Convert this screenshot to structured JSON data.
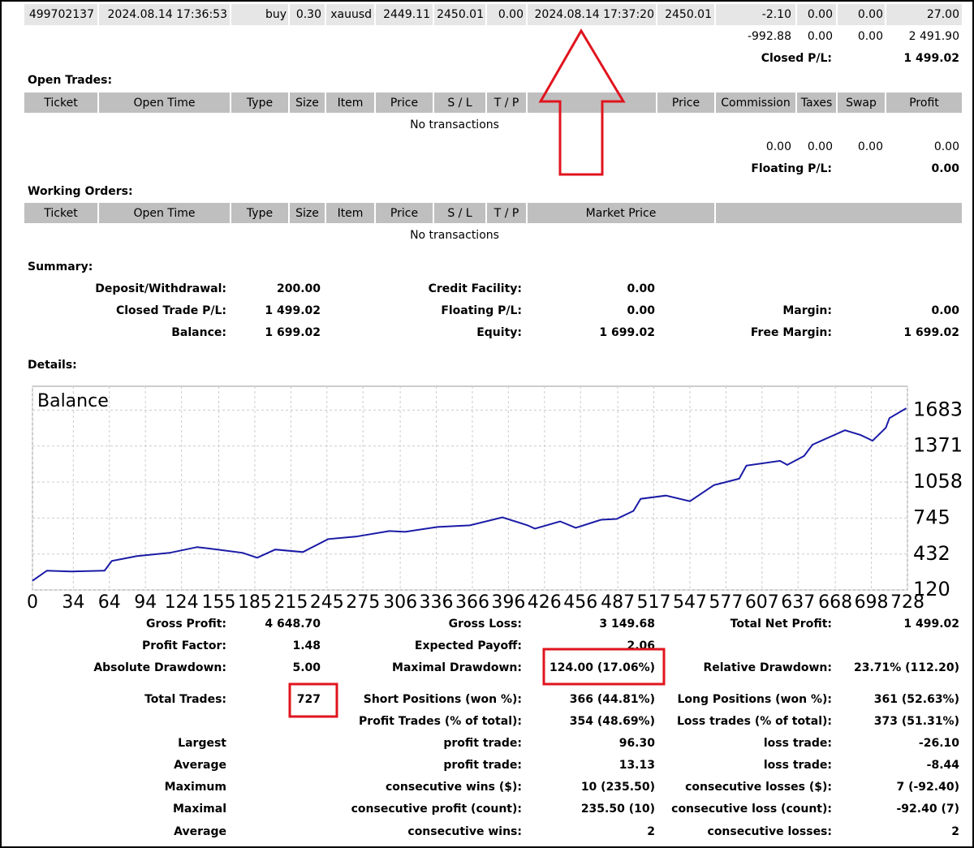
{
  "closed_trades": {
    "row": [
      "499702137",
      "2024.08.14 17:36:53",
      "buy",
      "0.30",
      "xauusd",
      "2449.11",
      "2450.01",
      "0.00",
      "2024.08.14 17:37:20",
      "2450.01",
      "-2.10",
      "0.00",
      "0.00",
      "27.00"
    ],
    "totals": [
      "-992.88",
      "0.00",
      "0.00",
      "2 491.90"
    ],
    "pl_label": "Closed P/L:",
    "pl_value": "1 499.02"
  },
  "open_trades": {
    "title": "Open Trades:",
    "headers": [
      "Ticket",
      "Open Time",
      "Type",
      "Size",
      "Item",
      "Price",
      "S / L",
      "T / P",
      "Price",
      "Commission",
      "Taxes",
      "Swap",
      "Profit"
    ],
    "empty": "No transactions",
    "totals": [
      "0.00",
      "0.00",
      "0.00",
      "0.00"
    ],
    "pl_label": "Floating P/L:",
    "pl_value": "0.00"
  },
  "working_orders": {
    "title": "Working Orders:",
    "headers": [
      "Ticket",
      "Open Time",
      "Type",
      "Size",
      "Item",
      "Price",
      "S / L",
      "T / P",
      "Market Price"
    ],
    "empty": "No transactions"
  },
  "summary": {
    "title": "Summary:",
    "rows": [
      [
        "Deposit/Withdrawal:",
        "200.00",
        "Credit Facility:",
        "0.00",
        null,
        null
      ],
      [
        "Closed Trade P/L:",
        "1 499.02",
        "Floating P/L:",
        "0.00",
        "Margin:",
        "0.00"
      ],
      [
        "Balance:",
        "1 699.02",
        "Equity:",
        "1 699.02",
        "Free Margin:",
        "1 699.02"
      ]
    ]
  },
  "details": {
    "title": "Details:",
    "rows": [
      [
        "Gross Profit:",
        "4 648.70",
        "Gross Loss:",
        "3 149.68",
        "Total Net Profit:",
        "1 499.02"
      ],
      [
        "Profit Factor:",
        "1.48",
        "Expected Payoff:",
        "2.06",
        null,
        null
      ],
      [
        "Absolute Drawdown:",
        "5.00",
        "Maximal Drawdown:",
        "124.00 (17.06%)",
        "Relative Drawdown:",
        "23.71% (112.20)"
      ],
      [
        "Total Trades:",
        "727",
        "Short Positions (won %):",
        "366 (44.81%)",
        "Long Positions (won %):",
        "361 (52.63%)"
      ],
      [
        null,
        null,
        "Profit Trades (% of total):",
        "354 (48.69%)",
        "Loss trades (% of total):",
        "373 (51.31%)"
      ],
      [
        "Largest",
        null,
        "profit trade:",
        "96.30",
        "loss trade:",
        "-26.10"
      ],
      [
        "Average",
        null,
        "profit trade:",
        "13.13",
        "loss trade:",
        "-8.44"
      ],
      [
        "Maximum",
        null,
        "consecutive wins ($):",
        "10 (235.50)",
        "consecutive losses ($):",
        "7 (-92.40)"
      ],
      [
        "Maximal",
        null,
        "consecutive profit (count):",
        "235.50 (10)",
        "consecutive loss (count):",
        "-92.40 (7)"
      ],
      [
        "Average",
        null,
        "consecutive wins:",
        "2",
        "consecutive losses:",
        "2"
      ]
    ]
  },
  "chart_data": {
    "type": "line",
    "title": "Balance",
    "color": "#1a1aa6",
    "grid": true,
    "x": [
      0,
      12,
      32,
      60,
      66,
      87,
      114,
      137,
      154,
      175,
      187,
      202,
      225,
      246,
      269,
      297,
      310,
      337,
      364,
      391,
      412,
      418,
      439,
      452,
      473,
      486,
      500,
      506,
      527,
      547,
      567,
      588,
      594,
      622,
      628,
      642,
      649,
      676,
      689,
      699,
      710,
      713,
      727
    ],
    "values": [
      200,
      288,
      281,
      288,
      372,
      414,
      442,
      492,
      471,
      442,
      400,
      471,
      449,
      562,
      583,
      632,
      625,
      667,
      681,
      751,
      681,
      653,
      716,
      660,
      730,
      737,
      807,
      912,
      940,
      891,
      1031,
      1087,
      1200,
      1242,
      1207,
      1284,
      1382,
      1508,
      1466,
      1417,
      1529,
      1613,
      1699
    ],
    "xlim": [
      0,
      728
    ],
    "xticks": [
      0,
      34,
      64,
      94,
      124,
      155,
      185,
      215,
      245,
      275,
      306,
      336,
      366,
      396,
      426,
      456,
      487,
      517,
      547,
      577,
      607,
      637,
      668,
      698,
      728
    ],
    "ylim": [
      120,
      1890
    ],
    "yticks": [
      120,
      432,
      745,
      1058,
      1371,
      1683
    ]
  }
}
